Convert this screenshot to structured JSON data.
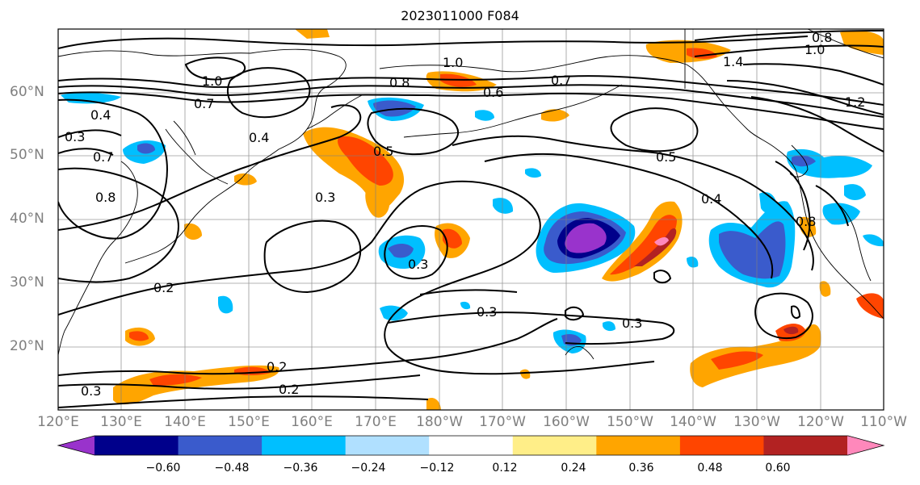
{
  "title": "2023011000 F084",
  "lat_labels": [
    "60°N",
    "50°N",
    "40°N",
    "30°N",
    "20°N"
  ],
  "lon_labels": [
    "120°E",
    "130°E",
    "140°E",
    "150°E",
    "160°E",
    "170°E",
    "180°W",
    "170°W",
    "160°W",
    "150°W",
    "140°W",
    "130°W",
    "120°W",
    "110°W"
  ],
  "colorbar": {
    "ticks": [
      "−0.60",
      "−0.48",
      "−0.36",
      "−0.24",
      "−0.12",
      "0.12",
      "0.24",
      "0.36",
      "0.48",
      "0.60"
    ],
    "colors": [
      "#9933cc",
      "#00008b",
      "#3a5bcc",
      "#00bfff",
      "#b0e0ff",
      "#ffffff",
      "#ffee88",
      "#ffa500",
      "#ff4500",
      "#b22222",
      "#ff88bb"
    ]
  },
  "contour_labels": [
    "1.0",
    "1.0",
    "0.7",
    "0.8",
    "0.6",
    "0.7",
    "1.4",
    "1.2",
    "0.8",
    "1.0",
    "0.4",
    "0.4",
    "0.5",
    "0.3",
    "0.3",
    "0.2",
    "0.3",
    "0.3",
    "0.2",
    "0.2",
    "0.5",
    "0.4",
    "0.8",
    "0.3",
    "0.7",
    "0.8",
    "0.3"
  ]
}
